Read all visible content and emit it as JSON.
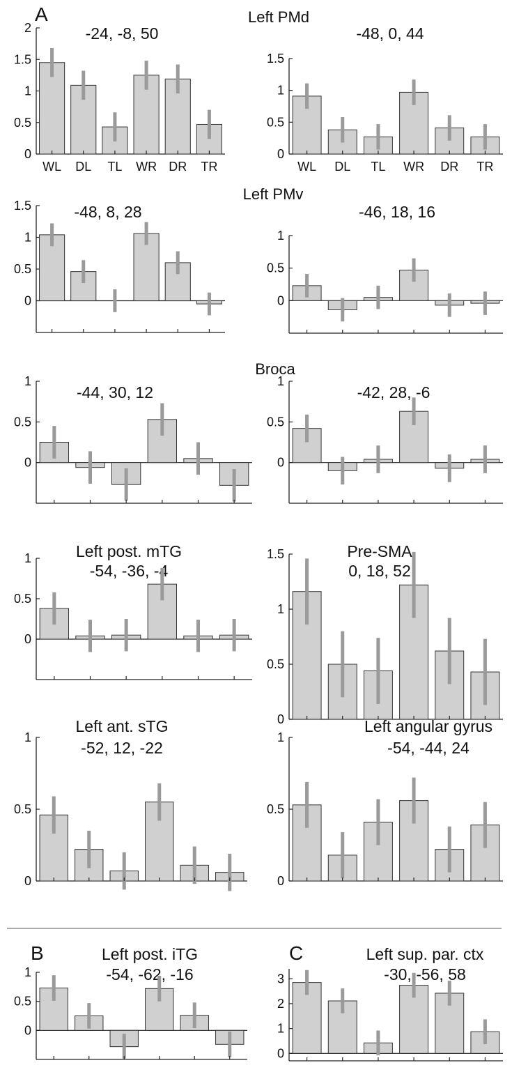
{
  "panel_letters": {
    "A": "A",
    "B": "B",
    "C": "C"
  },
  "region_labels": {
    "pmd": "Left PMd",
    "pmv": "Left PMv",
    "broca": "Broca"
  },
  "colors": {
    "bar_fill": "#d0d0d0",
    "bar_stroke": "#333333",
    "error_bar": "#9a9a9a",
    "axis": "#222222"
  },
  "chart_data": [
    {
      "id": "pmd_left",
      "type": "bar",
      "title": "-24, -8, 50",
      "categories": [
        "WL",
        "DL",
        "TL",
        "WR",
        "DR",
        "TR"
      ],
      "values": [
        1.45,
        1.09,
        0.43,
        1.25,
        1.19,
        0.47
      ],
      "errors": [
        0.23,
        0.23,
        0.23,
        0.23,
        0.23,
        0.23
      ],
      "ylim": [
        0,
        2
      ],
      "yticks": [
        0,
        0.5,
        1,
        1.5,
        2
      ],
      "ytick_labels": [
        "0",
        "0.5",
        "1",
        "1.5",
        "2"
      ],
      "show_xtick_labels": true
    },
    {
      "id": "pmd_right",
      "type": "bar",
      "title": "-48, 0, 44",
      "categories": [
        "WL",
        "DL",
        "TL",
        "WR",
        "DR",
        "TR"
      ],
      "values": [
        0.91,
        0.38,
        0.27,
        0.97,
        0.41,
        0.27
      ],
      "errors": [
        0.2,
        0.2,
        0.2,
        0.2,
        0.2,
        0.2
      ],
      "ylim": [
        0,
        1.5
      ],
      "yticks": [
        0,
        0.5,
        1,
        1.5
      ],
      "ytick_labels": [
        "0",
        "0.5",
        "1",
        "1.5"
      ],
      "show_xtick_labels": true
    },
    {
      "id": "pmv_left",
      "type": "bar",
      "title": "-48, 8, 28",
      "categories": [
        "WL",
        "DL",
        "TL",
        "WR",
        "DR",
        "TR"
      ],
      "values": [
        1.04,
        0.46,
        0.0,
        1.06,
        0.6,
        -0.05
      ],
      "errors": [
        0.18,
        0.18,
        0.18,
        0.18,
        0.18,
        0.18
      ],
      "ylim": [
        -0.5,
        1.5
      ],
      "yticks": [
        0,
        0.5,
        1,
        1.5
      ],
      "ytick_labels": [
        "0",
        "0.5",
        "1",
        "1.5"
      ],
      "show_xtick_labels": false
    },
    {
      "id": "pmv_right",
      "type": "bar",
      "title": "-46, 18, 16",
      "categories": [
        "WL",
        "DL",
        "TL",
        "WR",
        "DR",
        "TR"
      ],
      "values": [
        0.23,
        -0.14,
        0.05,
        0.47,
        -0.07,
        -0.04
      ],
      "errors": [
        0.18,
        0.18,
        0.18,
        0.18,
        0.18,
        0.18
      ],
      "ylim": [
        -0.5,
        1
      ],
      "yticks": [
        0,
        0.5,
        1
      ],
      "ytick_labels": [
        "0",
        "0.5",
        "1"
      ],
      "show_xtick_labels": false
    },
    {
      "id": "broca_left",
      "type": "bar",
      "title": "-44, 30, 12",
      "categories": [
        "WL",
        "DL",
        "TL",
        "WR",
        "DR",
        "TR"
      ],
      "values": [
        0.25,
        -0.06,
        -0.27,
        0.53,
        0.05,
        -0.28
      ],
      "errors": [
        0.2,
        0.2,
        0.2,
        0.2,
        0.2,
        0.2
      ],
      "ylim": [
        -0.5,
        1
      ],
      "yticks": [
        0,
        0.5,
        1
      ],
      "ytick_labels": [
        "0",
        "0.5",
        "1"
      ],
      "show_xtick_labels": false
    },
    {
      "id": "broca_right",
      "type": "bar",
      "title": "-42, 28, -6",
      "categories": [
        "WL",
        "DL",
        "TL",
        "WR",
        "DR",
        "TR"
      ],
      "values": [
        0.42,
        -0.1,
        0.04,
        0.63,
        -0.07,
        0.04
      ],
      "errors": [
        0.17,
        0.17,
        0.17,
        0.17,
        0.17,
        0.17
      ],
      "ylim": [
        -0.5,
        1
      ],
      "yticks": [
        0,
        0.5,
        1
      ],
      "ytick_labels": [
        "0",
        "0.5",
        "1"
      ],
      "show_xtick_labels": false
    },
    {
      "id": "mtg",
      "type": "bar",
      "title": "Left post. mTG",
      "subtitle": "-54, -36, -4",
      "categories": [
        "WL",
        "DL",
        "TL",
        "WR",
        "DR",
        "TR"
      ],
      "values": [
        0.38,
        0.04,
        0.05,
        0.68,
        0.04,
        0.05
      ],
      "errors": [
        0.2,
        0.2,
        0.2,
        0.2,
        0.2,
        0.2
      ],
      "ylim": [
        -0.5,
        1
      ],
      "yticks": [
        0,
        0.5,
        1
      ],
      "ytick_labels": [
        "0",
        "0.5",
        "1"
      ],
      "show_xtick_labels": false
    },
    {
      "id": "presma",
      "type": "bar",
      "title": "Pre-SMA",
      "subtitle": "0, 18, 52",
      "categories": [
        "WL",
        "DL",
        "TL",
        "WR",
        "DR",
        "TR"
      ],
      "values": [
        1.16,
        0.5,
        0.44,
        1.22,
        0.62,
        0.43
      ],
      "errors": [
        0.3,
        0.3,
        0.3,
        0.3,
        0.3,
        0.3
      ],
      "ylim": [
        0,
        1.5
      ],
      "yticks": [
        0,
        0.5,
        1,
        1.5
      ],
      "ytick_labels": [
        "0",
        "0.5",
        "1",
        "1.5"
      ],
      "show_xtick_labels": false
    },
    {
      "id": "stg",
      "type": "bar",
      "title": "Left ant. sTG",
      "subtitle": "-52, 12, -22",
      "categories": [
        "WL",
        "DL",
        "TL",
        "WR",
        "DR",
        "TR"
      ],
      "values": [
        0.46,
        0.22,
        0.07,
        0.55,
        0.11,
        0.06
      ],
      "errors": [
        0.13,
        0.13,
        0.13,
        0.13,
        0.13,
        0.13
      ],
      "ylim": [
        0,
        1
      ],
      "yticks": [
        0,
        0.5,
        1
      ],
      "ytick_labels": [
        "0",
        "0.5",
        "1"
      ],
      "show_xtick_labels": false
    },
    {
      "id": "angular",
      "type": "bar",
      "title": "Left angular gyrus",
      "subtitle": "-54, -44, 24",
      "categories": [
        "WL",
        "DL",
        "TL",
        "WR",
        "DR",
        "TR"
      ],
      "values": [
        0.53,
        0.18,
        0.41,
        0.56,
        0.22,
        0.39
      ],
      "errors": [
        0.16,
        0.16,
        0.16,
        0.16,
        0.16,
        0.16
      ],
      "ylim": [
        0,
        1
      ],
      "yticks": [
        0,
        0.5,
        1
      ],
      "ytick_labels": [
        "0",
        "0.5",
        "1"
      ],
      "show_xtick_labels": false
    },
    {
      "id": "itg",
      "type": "bar",
      "title": "Left post. iTG",
      "subtitle": "-54, -62, -16",
      "categories": [
        "WL",
        "DL",
        "TL",
        "WR",
        "DR",
        "TR"
      ],
      "values": [
        0.73,
        0.25,
        -0.28,
        0.72,
        0.26,
        -0.24
      ],
      "errors": [
        0.22,
        0.22,
        0.22,
        0.22,
        0.22,
        0.22
      ],
      "ylim": [
        -0.5,
        1
      ],
      "yticks": [
        0,
        0.5,
        1
      ],
      "ytick_labels": [
        "0",
        "0.5",
        "1"
      ],
      "show_xtick_labels": false
    },
    {
      "id": "spc",
      "type": "bar",
      "title": "Left sup. par. ctx",
      "subtitle": "-30, -56, 58",
      "categories": [
        "WL",
        "DL",
        "TL",
        "WR",
        "DR",
        "TR"
      ],
      "values": [
        2.85,
        2.11,
        0.42,
        2.74,
        2.42,
        0.87
      ],
      "errors": [
        0.5,
        0.5,
        0.5,
        0.5,
        0.5,
        0.5
      ],
      "ylim": [
        -0.3,
        3.4
      ],
      "yticks": [
        0,
        1,
        2,
        3
      ],
      "ytick_labels": [
        "0",
        "1",
        "2",
        "3"
      ],
      "show_xtick_labels": false
    }
  ]
}
